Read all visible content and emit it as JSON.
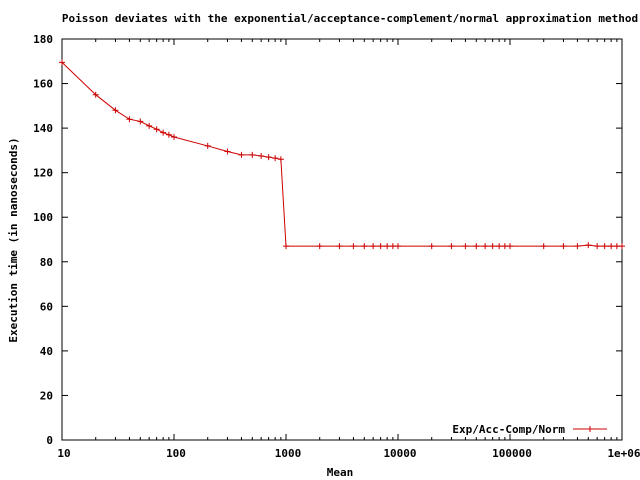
{
  "chart_data": {
    "type": "line",
    "title": "Poisson deviates with the exponential/acceptance-complement/normal approximation method",
    "xlabel": "Mean",
    "ylabel": "Execution time (in nanoseconds)",
    "x_scale": "log",
    "xlim": [
      10,
      1000000
    ],
    "ylim": [
      0,
      180
    ],
    "x_ticks": [
      10,
      100,
      1000,
      10000,
      100000,
      1000000
    ],
    "x_tick_labels": [
      "10",
      "100",
      "1000",
      "10000",
      "100000",
      "1e+06"
    ],
    "y_ticks": [
      0,
      20,
      40,
      60,
      80,
      100,
      120,
      140,
      160,
      180
    ],
    "y_tick_labels": [
      "0",
      "20",
      "40",
      "60",
      "80",
      "100",
      "120",
      "140",
      "160",
      "180"
    ],
    "grid": false,
    "legend_position": "bottom-right",
    "series": [
      {
        "name": "Exp/Acc-Comp/Norm",
        "color": "#cc0000",
        "x": [
          10,
          20,
          30,
          40,
          50,
          60,
          70,
          80,
          90,
          100,
          200,
          300,
          400,
          500,
          600,
          700,
          800,
          900,
          1000,
          2000,
          3000,
          4000,
          5000,
          6000,
          7000,
          8000,
          9000,
          10000,
          20000,
          30000,
          40000,
          50000,
          60000,
          70000,
          80000,
          90000,
          100000,
          200000,
          300000,
          400000,
          500000,
          600000,
          700000,
          800000,
          900000,
          1000000
        ],
        "y": [
          169.5,
          155,
          148,
          144,
          143,
          141,
          139.5,
          138,
          137,
          136,
          132,
          129.5,
          128,
          128,
          127.5,
          127,
          126.5,
          126,
          87,
          87,
          87,
          87,
          87,
          87,
          87,
          87,
          87,
          87,
          87,
          87,
          87,
          87,
          87,
          87,
          87,
          87,
          87,
          87,
          87,
          87,
          87.5,
          87,
          87,
          87,
          87,
          87
        ]
      }
    ]
  }
}
